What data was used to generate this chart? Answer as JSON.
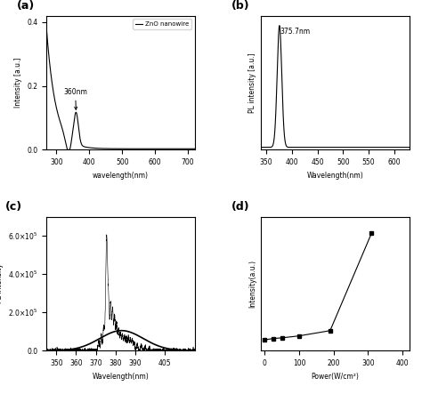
{
  "panel_a": {
    "label": "(a)",
    "xlabel": "wavelength(nm)",
    "ylabel": "Intensity [a.u.]",
    "legend": "ZnO nanowire",
    "annotation": "360nm",
    "xlim": [
      270,
      720
    ],
    "ylim": [
      0.0,
      0.42
    ],
    "yticks": [
      0.0,
      0.2,
      0.4
    ],
    "xticks": [
      300,
      400,
      500,
      600,
      700
    ]
  },
  "panel_b": {
    "label": "(b)",
    "xlabel": "Wavelength(nm)",
    "ylabel": "PL intensity [a.u.]",
    "annotation": "375.7nm",
    "xlim": [
      340,
      630
    ],
    "xticks": [
      350,
      400,
      450,
      500,
      550,
      600
    ]
  },
  "panel_c": {
    "label": "(c)",
    "xlabel": "Wavelength(nm)",
    "ylabel": "PL intensity",
    "xlim": [
      345,
      420
    ],
    "ylim": [
      0.0,
      700000.0
    ],
    "yticks_vals": [
      0,
      200000,
      400000,
      600000
    ],
    "xticks": [
      350,
      360,
      370,
      380,
      390,
      405
    ]
  },
  "panel_d": {
    "label": "(d)",
    "xlabel": "Power(W/cm²)",
    "ylabel": "Intensity(a.u.)",
    "xlim": [
      -10,
      420
    ],
    "xticks": [
      0,
      100,
      200,
      300,
      400
    ],
    "x_data": [
      0,
      25,
      50,
      100,
      190,
      310
    ],
    "y_data": [
      0.04,
      0.05,
      0.055,
      0.07,
      0.11,
      0.85
    ]
  }
}
